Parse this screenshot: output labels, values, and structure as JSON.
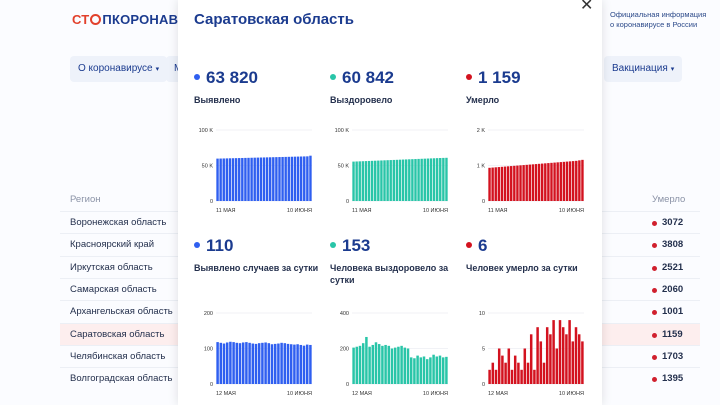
{
  "background": {
    "logo_left": "СТ",
    "logo_right": "ПКОРОНАВИ",
    "official_text": "Официальная информация о коронавирусе в России",
    "nav": [
      {
        "label": "О коронавирусе"
      },
      {
        "label": "М"
      },
      {
        "label": "Вакцинация"
      }
    ],
    "columns": {
      "region": "Регион",
      "deaths": "Умерло"
    },
    "rows": [
      {
        "name": "Воронежская область",
        "value": "3072"
      },
      {
        "name": "Красноярский край",
        "value": "3808"
      },
      {
        "name": "Иркутская область",
        "value": "2521"
      },
      {
        "name": "Самарская область",
        "value": "2060"
      },
      {
        "name": "Архангельская область",
        "value": "1001"
      },
      {
        "name": "Саратовская область",
        "value": "1159",
        "highlight": true
      },
      {
        "name": "Челябинская область",
        "value": "1703"
      },
      {
        "name": "Волгоградская область",
        "value": "1395"
      }
    ]
  },
  "modal": {
    "title": "Саратовская область",
    "close_icon": "close-icon",
    "cards": [
      {
        "id": "detected",
        "value": "63 820",
        "label": "Выявлено",
        "color": "#2f5ff0"
      },
      {
        "id": "recovered",
        "value": "60 842",
        "label": "Выздоровело",
        "color": "#29c5a8"
      },
      {
        "id": "died",
        "value": "1 159",
        "label": "Умерло",
        "color": "#d3121f"
      },
      {
        "id": "detected-daily",
        "value": "110",
        "label": "Выявлено случаев за сутки",
        "color": "#2f5ff0"
      },
      {
        "id": "recovered-daily",
        "value": "153",
        "label": "Человека выздоровело за сутки",
        "color": "#29c5a8"
      },
      {
        "id": "died-daily",
        "value": "6",
        "label": "Человек умерло за сутки",
        "color": "#d3121f"
      }
    ]
  },
  "chart_data": [
    {
      "type": "bar",
      "series_id": "detected",
      "color": "#2f5ff0",
      "x_start": "11 МАЯ",
      "x_end": "10 ИЮНЯ",
      "yticks": [
        "0",
        "50 K",
        "100 K"
      ],
      "ylim": [
        0,
        100000
      ],
      "values": [
        59700,
        59810,
        59920,
        60030,
        60140,
        60250,
        60360,
        60470,
        60580,
        60690,
        60800,
        60910,
        61020,
        61130,
        61240,
        61350,
        61460,
        61570,
        61680,
        61790,
        61900,
        62010,
        62120,
        62230,
        62340,
        62450,
        62560,
        62670,
        62780,
        62890,
        63820
      ]
    },
    {
      "type": "bar",
      "series_id": "recovered",
      "color": "#29c5a8",
      "x_start": "11 МАЯ",
      "x_end": "10 ИЮНЯ",
      "yticks": [
        "0",
        "50 K",
        "100 K"
      ],
      "ylim": [
        0,
        100000
      ],
      "values": [
        55500,
        55680,
        55860,
        56040,
        56220,
        56400,
        56580,
        56760,
        56940,
        57120,
        57300,
        57480,
        57660,
        57840,
        58020,
        58200,
        58380,
        58560,
        58740,
        58920,
        59100,
        59280,
        59460,
        59640,
        59820,
        60000,
        60180,
        60360,
        60540,
        60700,
        60842
      ]
    },
    {
      "type": "bar",
      "series_id": "died",
      "color": "#d3121f",
      "x_start": "11 МАЯ",
      "x_end": "10 ИЮНЯ",
      "yticks": [
        "0",
        "1 K",
        "2 K"
      ],
      "ylim": [
        0,
        2000
      ],
      "values": [
        935,
        942,
        949,
        956,
        963,
        970,
        977,
        984,
        991,
        998,
        1005,
        1012,
        1019,
        1026,
        1033,
        1040,
        1047,
        1054,
        1061,
        1068,
        1075,
        1082,
        1089,
        1096,
        1103,
        1110,
        1117,
        1124,
        1131,
        1145,
        1159
      ]
    },
    {
      "type": "bar",
      "series_id": "detected-daily",
      "color": "#2f5ff0",
      "x_start": "12 МАЯ",
      "x_end": "10 ИЮНЯ",
      "yticks": [
        "0",
        "100",
        "200"
      ],
      "ylim": [
        0,
        200
      ],
      "values": [
        118,
        116,
        114,
        117,
        119,
        118,
        116,
        115,
        117,
        118,
        116,
        114,
        113,
        115,
        116,
        117,
        115,
        112,
        113,
        114,
        116,
        115,
        113,
        112,
        111,
        112,
        110,
        108,
        111,
        110
      ]
    },
    {
      "type": "bar",
      "series_id": "recovered-daily",
      "color": "#29c5a8",
      "x_start": "12 МАЯ",
      "x_end": "10 ИЮНЯ",
      "yticks": [
        "0",
        "200",
        "400"
      ],
      "ylim": [
        0,
        400
      ],
      "values": [
        205,
        210,
        215,
        230,
        265,
        210,
        220,
        235,
        225,
        215,
        220,
        215,
        200,
        205,
        210,
        215,
        205,
        200,
        150,
        145,
        160,
        150,
        155,
        140,
        150,
        165,
        155,
        160,
        150,
        153
      ]
    },
    {
      "type": "bar",
      "series_id": "died-daily",
      "color": "#d3121f",
      "x_start": "12 МАЯ",
      "x_end": "10 ИЮНЯ",
      "yticks": [
        "0",
        "5",
        "10"
      ],
      "ylim": [
        0,
        10
      ],
      "values": [
        2,
        3,
        2,
        5,
        4,
        3,
        5,
        2,
        4,
        3,
        2,
        5,
        3,
        7,
        2,
        8,
        6,
        3,
        8,
        7,
        9,
        5,
        9,
        8,
        7,
        9,
        6,
        8,
        7,
        6
      ]
    }
  ]
}
